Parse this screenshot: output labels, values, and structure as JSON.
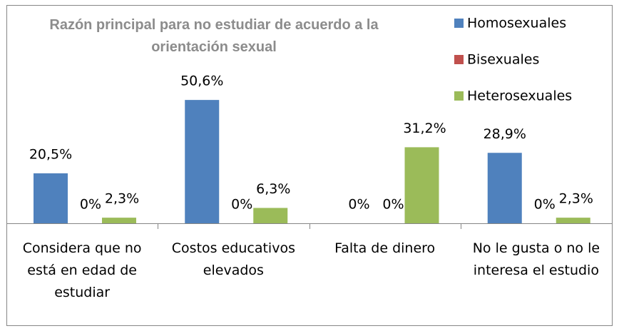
{
  "chart_data": {
    "type": "bar",
    "title": "Razón principal para no estudiar de acuerdo a la orientación sexual",
    "categories": [
      "Considera que no está en edad de estudiar",
      "Costos educativos elevados",
      "Falta de dinero",
      "No le gusta o no le interesa el estudio"
    ],
    "series": [
      {
        "name": "Homosexuales",
        "color": "#4f81bd",
        "values": [
          20.5,
          50.6,
          0,
          28.9
        ],
        "value_labels": [
          "20,5%",
          "50,6%",
          "0%",
          "28,9%"
        ]
      },
      {
        "name": "Bisexuales",
        "color": "#c0504d",
        "values": [
          0,
          0,
          0,
          0
        ],
        "value_labels": [
          "0%",
          "0%",
          "0%",
          "0%"
        ]
      },
      {
        "name": "Heterosexuales",
        "color": "#9bbb59",
        "values": [
          2.3,
          6.3,
          31.2,
          2.3
        ],
        "value_labels": [
          "2,3%",
          "6,3%",
          "31,2%",
          "2,3%"
        ]
      }
    ],
    "ylim": [
      0,
      60
    ],
    "legend": "right"
  }
}
